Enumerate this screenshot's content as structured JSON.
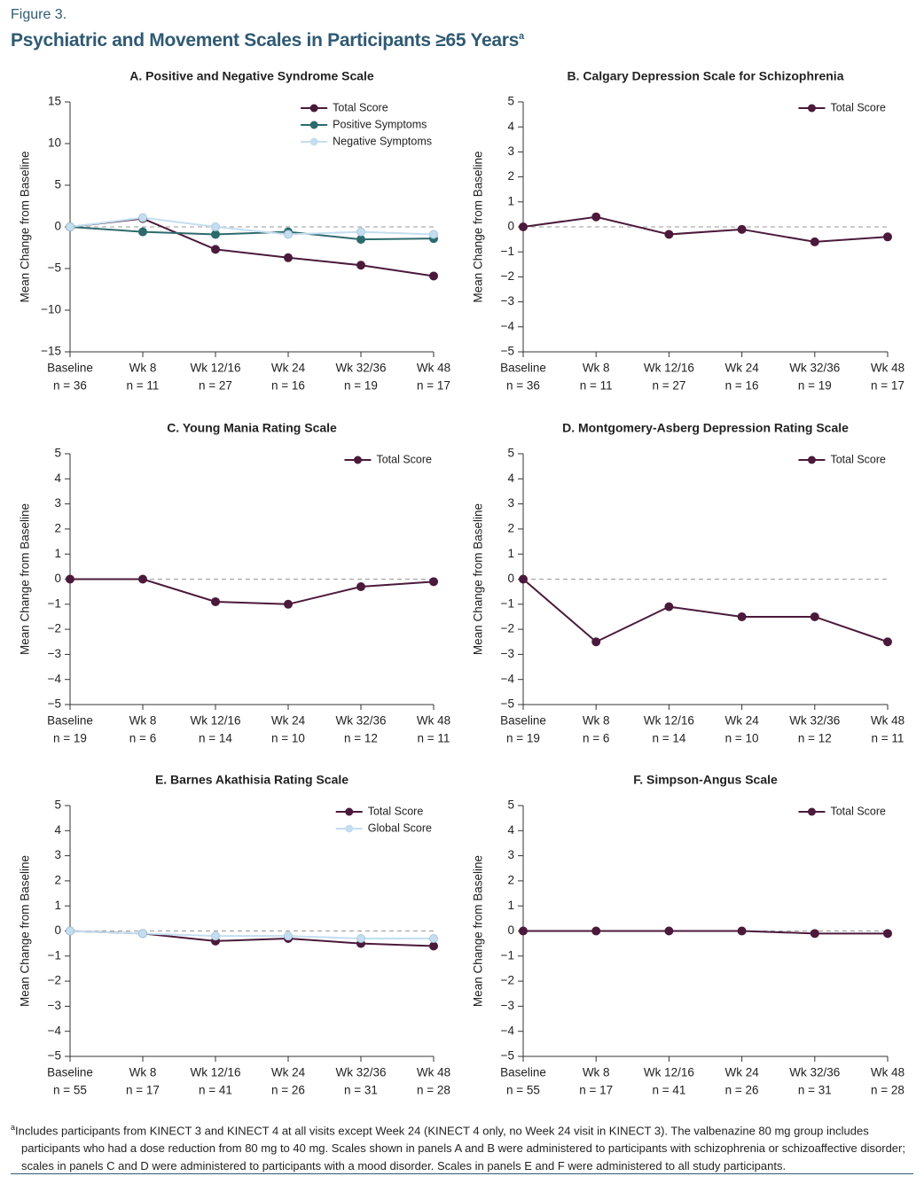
{
  "figure_label": "Figure 3.",
  "title": "Psychiatric and Movement Scales in Participants ≥65 Years",
  "title_sup": "a",
  "footnote_mark": "a",
  "footnote": "Includes participants from KINECT 3 and KINECT 4 at all visits except Week 24 (KINECT 4 only, no Week 24 visit in KINECT 3). The valbenazine 80 mg group includes participants who had a dose reduction from 80 mg to 40 mg. Scales shown in panels A and B were administered to participants with schizophrenia or schizoaffective disorder; scales in panels C and D were administered to participants with a mood disorder. Scales in panels E and F were administered to all study participants.",
  "chart_data": [
    {
      "type": "line",
      "title": "A. Positive and Negative Syndrome Scale",
      "ylabel": "Mean Change from Baseline",
      "categories": [
        "Baseline",
        "Wk 8",
        "Wk 12/16",
        "Wk 24",
        "Wk 32/36",
        "Wk 48"
      ],
      "n_labels": [
        "n = 36",
        "n = 11",
        "n = 27",
        "n = 16",
        "n = 19",
        "n = 17"
      ],
      "ylim": [
        -15,
        15
      ],
      "yticks": [
        {
          "value": -15,
          "label": "−15"
        },
        {
          "value": -10,
          "label": "−10"
        },
        {
          "value": -5,
          "label": "−5"
        },
        0,
        5,
        10,
        15
      ],
      "reference_line": 0,
      "legend": "top-right",
      "series": [
        {
          "name": "Total Score",
          "color": "#4b1a3b",
          "values": [
            0,
            1.0,
            -2.7,
            -3.7,
            -4.6,
            -5.9
          ]
        },
        {
          "name": "Positive Symptoms",
          "color": "#2d6a6c",
          "values": [
            0,
            -0.6,
            -0.9,
            -0.6,
            -1.5,
            -1.4
          ]
        },
        {
          "name": "Negative Symptoms",
          "color": "#c4def0",
          "values": [
            0,
            1.1,
            0.0,
            -0.9,
            -0.6,
            -0.9
          ]
        }
      ]
    },
    {
      "type": "line",
      "title": "B. Calgary Depression Scale for Schizophrenia",
      "ylabel": "Mean Change from Baseline",
      "categories": [
        "Baseline",
        "Wk 8",
        "Wk 12/16",
        "Wk 24",
        "Wk 32/36",
        "Wk 48"
      ],
      "n_labels": [
        "n = 36",
        "n = 11",
        "n = 27",
        "n = 16",
        "n = 19",
        "n = 17"
      ],
      "ylim": [
        -5,
        5
      ],
      "yticks": [
        {
          "value": -5,
          "label": "−5"
        },
        {
          "value": -4,
          "label": "−4"
        },
        {
          "value": -3,
          "label": "−3"
        },
        {
          "value": -2,
          "label": "−2"
        },
        {
          "value": -1,
          "label": "−1"
        },
        0,
        1,
        2,
        3,
        4,
        5
      ],
      "reference_line": 0,
      "legend": "top-right",
      "series": [
        {
          "name": "Total Score",
          "color": "#4b1a3b",
          "values": [
            0,
            0.4,
            -0.3,
            -0.1,
            -0.6,
            -0.4
          ]
        }
      ]
    },
    {
      "type": "line",
      "title": "C. Young Mania Rating Scale",
      "ylabel": "Mean Change from Baseline",
      "categories": [
        "Baseline",
        "Wk 8",
        "Wk 12/16",
        "Wk 24",
        "Wk 32/36",
        "Wk 48"
      ],
      "n_labels": [
        "n = 19",
        "n = 6",
        "n = 14",
        "n = 10",
        "n = 12",
        "n = 11"
      ],
      "ylim": [
        -5,
        5
      ],
      "yticks": [
        {
          "value": -5,
          "label": "−5"
        },
        {
          "value": -4,
          "label": "−4"
        },
        {
          "value": -3,
          "label": "−3"
        },
        {
          "value": -2,
          "label": "−2"
        },
        {
          "value": -1,
          "label": "−1"
        },
        0,
        1,
        2,
        3,
        4,
        5
      ],
      "reference_line": 0,
      "legend": "top-right",
      "series": [
        {
          "name": "Total Score",
          "color": "#4b1a3b",
          "values": [
            0,
            0,
            -0.9,
            -1.0,
            -0.3,
            -0.1
          ]
        }
      ]
    },
    {
      "type": "line",
      "title": "D. Montgomery-Asberg Depression Rating Scale",
      "ylabel": "Mean Change from Baseline",
      "categories": [
        "Baseline",
        "Wk 8",
        "Wk 12/16",
        "Wk 24",
        "Wk 32/36",
        "Wk 48"
      ],
      "n_labels": [
        "n = 19",
        "n = 6",
        "n = 14",
        "n = 10",
        "n = 12",
        "n = 11"
      ],
      "ylim": [
        -5,
        5
      ],
      "yticks": [
        {
          "value": -5,
          "label": "−5"
        },
        {
          "value": -4,
          "label": "−4"
        },
        {
          "value": -3,
          "label": "−3"
        },
        {
          "value": -2,
          "label": "−2"
        },
        {
          "value": -1,
          "label": "−1"
        },
        0,
        1,
        2,
        3,
        4,
        5
      ],
      "reference_line": 0,
      "legend": "top-right",
      "series": [
        {
          "name": "Total Score",
          "color": "#4b1a3b",
          "values": [
            0,
            -2.5,
            -1.1,
            -1.5,
            -1.5,
            -2.5
          ]
        }
      ]
    },
    {
      "type": "line",
      "title": "E. Barnes Akathisia Rating Scale",
      "ylabel": "Mean Change from Baseline",
      "categories": [
        "Baseline",
        "Wk 8",
        "Wk 12/16",
        "Wk 24",
        "Wk 32/36",
        "Wk 48"
      ],
      "n_labels": [
        "n = 55",
        "n = 17",
        "n = 41",
        "n = 26",
        "n = 31",
        "n = 28"
      ],
      "ylim": [
        -5,
        5
      ],
      "yticks": [
        {
          "value": -5,
          "label": "−5"
        },
        {
          "value": -4,
          "label": "−4"
        },
        {
          "value": -3,
          "label": "−3"
        },
        {
          "value": -2,
          "label": "−2"
        },
        {
          "value": -1,
          "label": "−1"
        },
        0,
        1,
        2,
        3,
        4,
        5
      ],
      "reference_line": 0,
      "legend": "top-right",
      "series": [
        {
          "name": "Total Score",
          "color": "#4b1a3b",
          "values": [
            0,
            -0.1,
            -0.4,
            -0.3,
            -0.5,
            -0.6
          ]
        },
        {
          "name": "Global Score",
          "color": "#c4def0",
          "values": [
            0,
            -0.1,
            -0.2,
            -0.2,
            -0.3,
            -0.3
          ]
        }
      ]
    },
    {
      "type": "line",
      "title": "F. Simpson-Angus Scale",
      "ylabel": "Mean Change from Baseline",
      "categories": [
        "Baseline",
        "Wk 8",
        "Wk 12/16",
        "Wk 24",
        "Wk 32/36",
        "Wk 48"
      ],
      "n_labels": [
        "n = 55",
        "n = 17",
        "n = 41",
        "n = 26",
        "n = 31",
        "n = 28"
      ],
      "ylim": [
        -5,
        5
      ],
      "yticks": [
        {
          "value": -5,
          "label": "−5"
        },
        {
          "value": -4,
          "label": "−4"
        },
        {
          "value": -3,
          "label": "−3"
        },
        {
          "value": -2,
          "label": "−2"
        },
        {
          "value": -1,
          "label": "−1"
        },
        0,
        1,
        2,
        3,
        4,
        5
      ],
      "reference_line": 0,
      "legend": "top-right",
      "series": [
        {
          "name": "Total Score",
          "color": "#4b1a3b",
          "values": [
            0,
            0,
            0,
            0,
            -0.1,
            -0.1
          ]
        }
      ]
    }
  ]
}
